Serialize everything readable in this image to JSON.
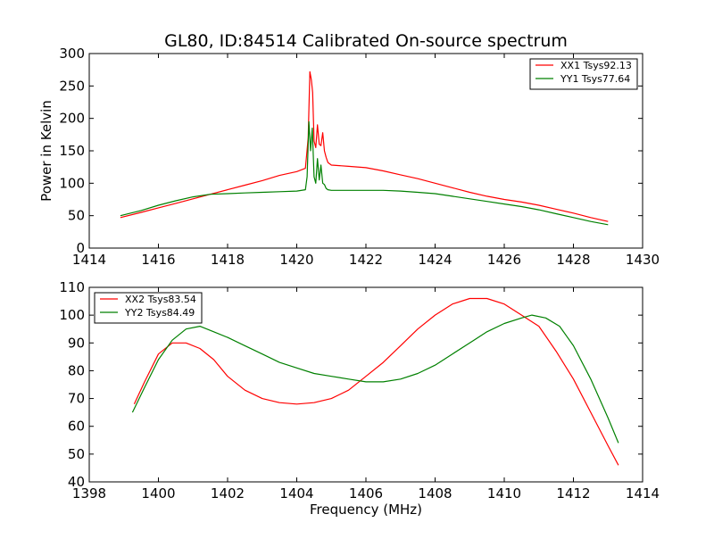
{
  "chart_data": [
    {
      "type": "line",
      "title": "GL80, ID:84514 Calibrated On-source spectrum",
      "xlabel": "",
      "ylabel": "Power in Kelvin",
      "xlim": [
        1414,
        1430
      ],
      "ylim": [
        0,
        300
      ],
      "xticks": [
        1414,
        1416,
        1418,
        1420,
        1422,
        1424,
        1426,
        1428,
        1430
      ],
      "yticks": [
        0,
        50,
        100,
        150,
        200,
        250,
        300
      ],
      "legend": "top-right",
      "grid": false,
      "series": [
        {
          "name": "XX1 Tsys92.13",
          "color": "#ff0000",
          "points": [
            [
              1414.9,
              47
            ],
            [
              1415.5,
              55
            ],
            [
              1416.0,
              62
            ],
            [
              1416.5,
              69
            ],
            [
              1417.0,
              76
            ],
            [
              1417.5,
              83
            ],
            [
              1418.0,
              90
            ],
            [
              1418.5,
              97
            ],
            [
              1419.0,
              104
            ],
            [
              1419.5,
              112
            ],
            [
              1420.0,
              118
            ],
            [
              1420.25,
              123
            ],
            [
              1420.33,
              170
            ],
            [
              1420.38,
              272
            ],
            [
              1420.42,
              260
            ],
            [
              1420.46,
              240
            ],
            [
              1420.5,
              165
            ],
            [
              1420.55,
              155
            ],
            [
              1420.6,
              190
            ],
            [
              1420.65,
              160
            ],
            [
              1420.7,
              158
            ],
            [
              1420.75,
              178
            ],
            [
              1420.8,
              150
            ],
            [
              1420.85,
              140
            ],
            [
              1420.9,
              132
            ],
            [
              1421.0,
              128
            ],
            [
              1421.5,
              126
            ],
            [
              1422.0,
              124
            ],
            [
              1422.5,
              119
            ],
            [
              1423.0,
              113
            ],
            [
              1423.5,
              107
            ],
            [
              1424.0,
              100
            ],
            [
              1424.5,
              93
            ],
            [
              1425.0,
              86
            ],
            [
              1425.5,
              80
            ],
            [
              1426.0,
              75
            ],
            [
              1426.5,
              71
            ],
            [
              1427.0,
              66
            ],
            [
              1427.5,
              60
            ],
            [
              1428.0,
              54
            ],
            [
              1428.5,
              47
            ],
            [
              1429.0,
              41
            ]
          ]
        },
        {
          "name": "YY1 Tsys77.64",
          "color": "#008000",
          "points": [
            [
              1414.9,
              50
            ],
            [
              1415.5,
              58
            ],
            [
              1416.0,
              66
            ],
            [
              1416.5,
              73
            ],
            [
              1417.0,
              79
            ],
            [
              1417.5,
              83
            ],
            [
              1418.0,
              84
            ],
            [
              1418.5,
              85
            ],
            [
              1419.0,
              86
            ],
            [
              1419.5,
              87
            ],
            [
              1420.0,
              88
            ],
            [
              1420.25,
              90
            ],
            [
              1420.3,
              110
            ],
            [
              1420.35,
              195
            ],
            [
              1420.4,
              150
            ],
            [
              1420.45,
              185
            ],
            [
              1420.5,
              110
            ],
            [
              1420.55,
              100
            ],
            [
              1420.6,
              138
            ],
            [
              1420.65,
              105
            ],
            [
              1420.7,
              128
            ],
            [
              1420.75,
              100
            ],
            [
              1420.8,
              98
            ],
            [
              1420.85,
              92
            ],
            [
              1420.9,
              90
            ],
            [
              1421.0,
              89
            ],
            [
              1421.5,
              89
            ],
            [
              1422.0,
              89
            ],
            [
              1422.5,
              89
            ],
            [
              1423.0,
              88
            ],
            [
              1423.5,
              86
            ],
            [
              1424.0,
              84
            ],
            [
              1424.5,
              80
            ],
            [
              1425.0,
              76
            ],
            [
              1425.5,
              72
            ],
            [
              1426.0,
              68
            ],
            [
              1426.5,
              64
            ],
            [
              1427.0,
              59
            ],
            [
              1427.5,
              53
            ],
            [
              1428.0,
              47
            ],
            [
              1428.5,
              41
            ],
            [
              1429.0,
              36
            ]
          ]
        }
      ]
    },
    {
      "type": "line",
      "title": "",
      "xlabel": "Frequency (MHz)",
      "ylabel": "",
      "xlim": [
        1398,
        1414
      ],
      "ylim": [
        40,
        110
      ],
      "xticks": [
        1398,
        1400,
        1402,
        1404,
        1406,
        1408,
        1410,
        1412,
        1414
      ],
      "yticks": [
        40,
        50,
        60,
        70,
        80,
        90,
        100,
        110
      ],
      "legend": "top-left",
      "grid": false,
      "series": [
        {
          "name": "XX2 Tsys83.54",
          "color": "#ff0000",
          "points": [
            [
              1399.3,
              68
            ],
            [
              1399.6,
              76
            ],
            [
              1400.0,
              86
            ],
            [
              1400.4,
              90
            ],
            [
              1400.8,
              90
            ],
            [
              1401.2,
              88
            ],
            [
              1401.6,
              84
            ],
            [
              1402.0,
              78
            ],
            [
              1402.5,
              73
            ],
            [
              1403.0,
              70
            ],
            [
              1403.5,
              68.5
            ],
            [
              1404.0,
              68
            ],
            [
              1404.5,
              68.5
            ],
            [
              1405.0,
              70
            ],
            [
              1405.5,
              73
            ],
            [
              1406.0,
              78
            ],
            [
              1406.5,
              83
            ],
            [
              1407.0,
              89
            ],
            [
              1407.5,
              95
            ],
            [
              1408.0,
              100
            ],
            [
              1408.5,
              104
            ],
            [
              1409.0,
              106
            ],
            [
              1409.5,
              106
            ],
            [
              1410.0,
              104
            ],
            [
              1410.5,
              100
            ],
            [
              1411.0,
              96
            ],
            [
              1411.5,
              87
            ],
            [
              1412.0,
              77
            ],
            [
              1412.5,
              65
            ],
            [
              1413.0,
              53
            ],
            [
              1413.3,
              46
            ]
          ]
        },
        {
          "name": "YY2 Tsys84.49",
          "color": "#008000",
          "points": [
            [
              1399.25,
              65
            ],
            [
              1399.6,
              74
            ],
            [
              1400.0,
              84
            ],
            [
              1400.4,
              91
            ],
            [
              1400.8,
              95
            ],
            [
              1401.2,
              96
            ],
            [
              1401.6,
              94
            ],
            [
              1402.0,
              92
            ],
            [
              1402.5,
              89
            ],
            [
              1403.0,
              86
            ],
            [
              1403.5,
              83
            ],
            [
              1404.0,
              81
            ],
            [
              1404.5,
              79
            ],
            [
              1405.0,
              78
            ],
            [
              1405.5,
              77
            ],
            [
              1406.0,
              76
            ],
            [
              1406.5,
              76
            ],
            [
              1407.0,
              77
            ],
            [
              1407.5,
              79
            ],
            [
              1408.0,
              82
            ],
            [
              1408.5,
              86
            ],
            [
              1409.0,
              90
            ],
            [
              1409.5,
              94
            ],
            [
              1410.0,
              97
            ],
            [
              1410.5,
              99
            ],
            [
              1410.8,
              100
            ],
            [
              1411.2,
              99
            ],
            [
              1411.6,
              96
            ],
            [
              1412.0,
              89
            ],
            [
              1412.5,
              77
            ],
            [
              1413.0,
              63
            ],
            [
              1413.3,
              54
            ]
          ]
        }
      ]
    }
  ]
}
